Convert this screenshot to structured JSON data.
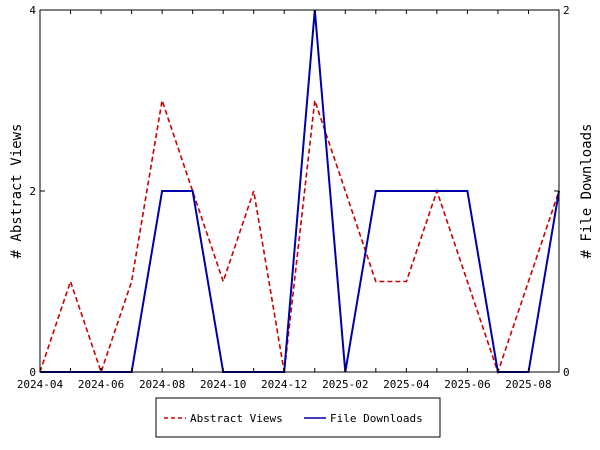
{
  "chart_data": {
    "type": "line",
    "categories": [
      "2024-04",
      "2024-05",
      "2024-06",
      "2024-07",
      "2024-08",
      "2024-09",
      "2024-10",
      "2024-11",
      "2024-12",
      "2025-01",
      "2025-02",
      "2025-03",
      "2025-04",
      "2025-05",
      "2025-06",
      "2025-07",
      "2025-08",
      "2025-09"
    ],
    "x_tick_labels": [
      "2024-04",
      "2024-06",
      "2024-08",
      "2024-10",
      "2024-12",
      "2025-02",
      "2025-04",
      "2025-06",
      "2025-08"
    ],
    "y_left": {
      "label": "# Abstract Views",
      "ylim": [
        0,
        4
      ],
      "ticks": [
        "0",
        "2",
        "4"
      ]
    },
    "y_right": {
      "label": "# File Downloads",
      "ylim": [
        0,
        2
      ],
      "ticks": [
        "0",
        "1",
        "2"
      ]
    },
    "series": [
      {
        "name": "Abstract Views",
        "axis": "left",
        "color": "#cc0000",
        "style": "dashed",
        "values": [
          0,
          1,
          0,
          1,
          3,
          2,
          1,
          2,
          0,
          3,
          2,
          1,
          1,
          2,
          1,
          0,
          1,
          2
        ]
      },
      {
        "name": "File Downloads",
        "axis": "right",
        "color": "#0000aa",
        "style": "solid",
        "values": [
          0,
          0,
          0,
          0,
          1,
          1,
          0,
          0,
          0,
          2,
          0,
          1,
          1,
          1,
          1,
          0,
          0,
          1
        ]
      }
    ],
    "grid": false,
    "legend_position": "bottom"
  }
}
